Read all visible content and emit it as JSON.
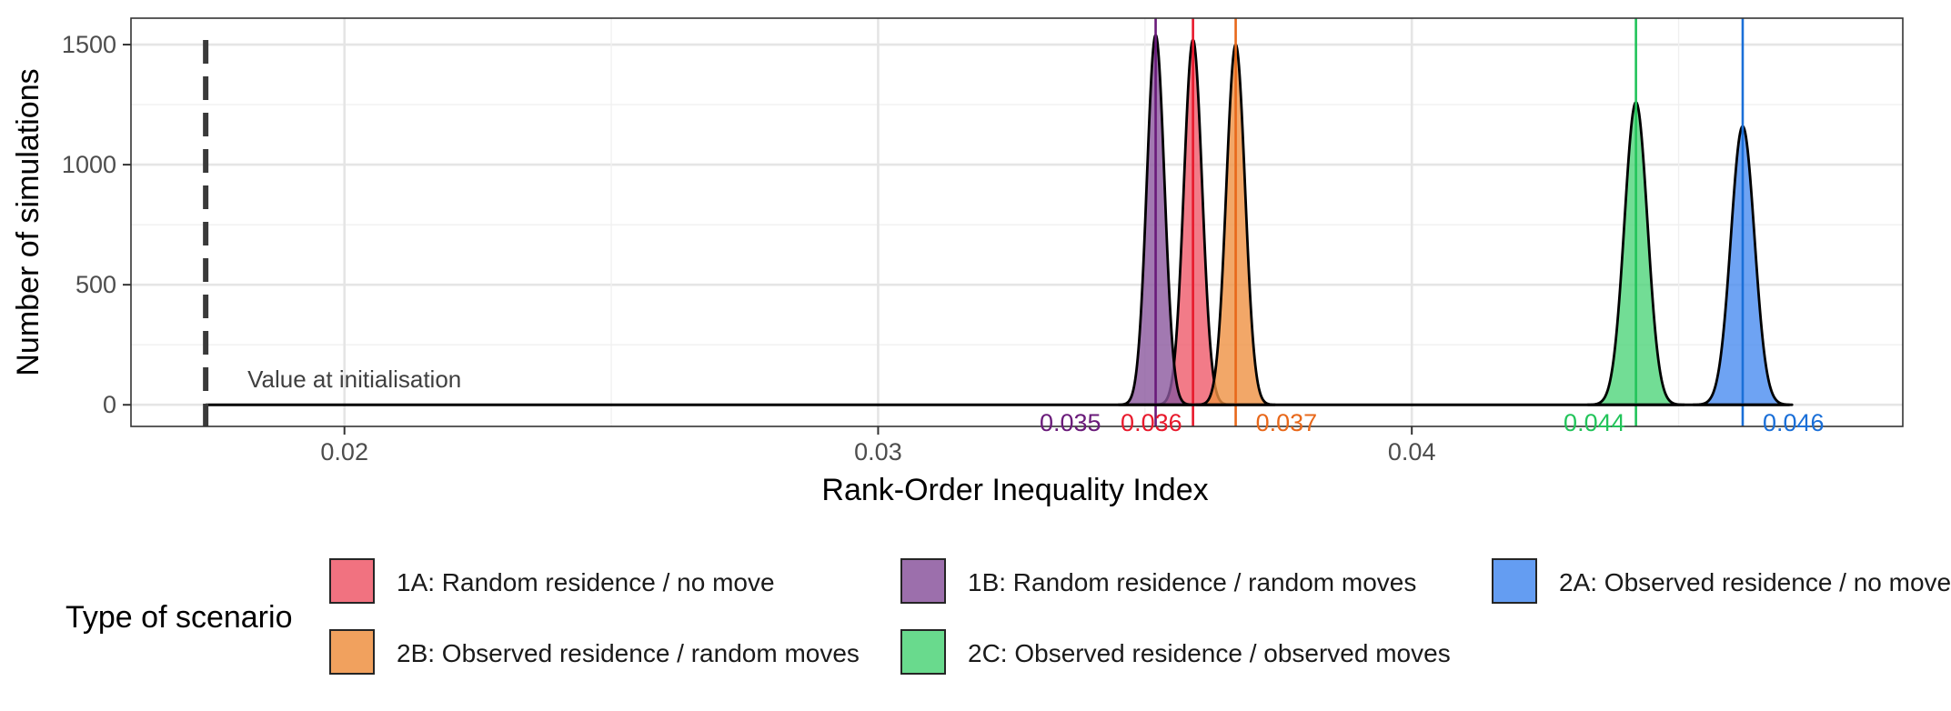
{
  "chart_data": {
    "type": "area",
    "xlabel": "Rank-Order Inequality Index",
    "ylabel": "Number of simulations",
    "xlim": [
      0.016,
      0.0492
    ],
    "ylim": [
      -90,
      1610
    ],
    "x_ticks": [
      0.02,
      0.03,
      0.04
    ],
    "x_tick_labels": [
      "0.02",
      "0.03",
      "0.04"
    ],
    "y_ticks": [
      0,
      500,
      1000,
      1500
    ],
    "y_tick_labels": [
      "0",
      "500",
      "1000",
      "1500"
    ],
    "grid": true,
    "legend_position": "bottom",
    "legend_title": "Type of scenario",
    "baseline_annotation": {
      "x": 0.0174,
      "label": "Value at initialisation",
      "style": "dashed"
    },
    "series": [
      {
        "name": "1A: Random residence / no move",
        "color": "#ef5a6a",
        "line_color": "#e8192c",
        "mean": 0.0359,
        "sd": 0.00017,
        "peak": 1520,
        "mean_label": "0.036"
      },
      {
        "name": "1B: Random residence / random moves",
        "color": "#8b579e",
        "line_color": "#6a1b7a",
        "mean": 0.0352,
        "sd": 0.000165,
        "peak": 1540,
        "mean_label": "0.035"
      },
      {
        "name": "2A: Observed residence / no move",
        "color": "#4a8cf0",
        "line_color": "#1a6fd8",
        "mean": 0.0462,
        "sd": 0.00022,
        "peak": 1160,
        "mean_label": "0.046"
      },
      {
        "name": "2B: Observed residence / random moves",
        "color": "#ef9142",
        "line_color": "#e8681a",
        "mean": 0.0367,
        "sd": 0.000175,
        "peak": 1500,
        "mean_label": "0.037"
      },
      {
        "name": "2C: Observed residence / observed moves",
        "color": "#4fd47a",
        "line_color": "#22c45a",
        "mean": 0.0442,
        "sd": 0.000215,
        "peak": 1260,
        "mean_label": "0.044"
      }
    ]
  }
}
